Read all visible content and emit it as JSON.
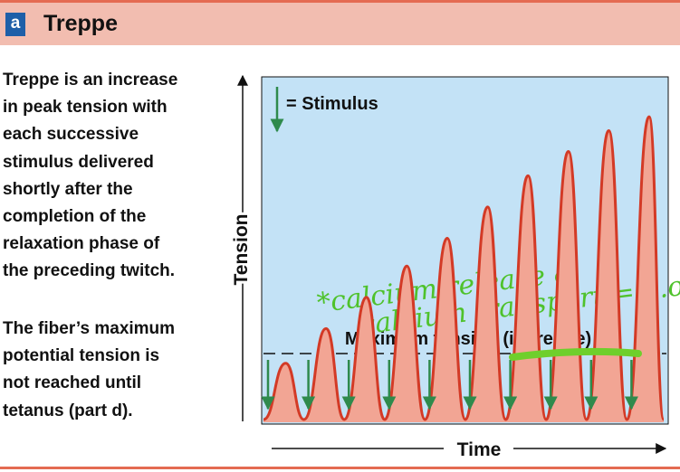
{
  "header": {
    "badge": "a",
    "title": "Treppe"
  },
  "description": {
    "paragraph1": "Treppe is an increase\nin peak tension with\neach successive\nstimulus delivered\nshortly after the\ncompletion of the\nrelaxation phase of\nthe preceding twitch.",
    "paragraph2": "The fiber’s maximum\npotential tension is\nnot reached until\ntetanus (part d)."
  },
  "diagram": {
    "y_axis_label": "Tension",
    "x_axis_label": "Time",
    "legend_label": "= Stimulus",
    "max_tension_label": "Maximum tension (in treppe)",
    "handwritten_note_line1": "*calcium release  &",
    "handwritten_note_line2": "calcium transport = e.o.",
    "stimulus_count": 10,
    "peak_tension_relative": [
      0.17,
      0.27,
      0.36,
      0.45,
      0.53,
      0.62,
      0.71,
      0.78,
      0.84,
      0.88
    ],
    "colors": {
      "plot_background": "#c3e2f6",
      "twitch_fill": "#f2a594",
      "twitch_line": "#d33a26",
      "stimulus_arrow": "#2f8a4c",
      "highlight_marker": "#6fcf2c",
      "header_background": "#f2bdb0",
      "accent_rule": "#e46b52",
      "badge": "#1e5fa8"
    }
  }
}
